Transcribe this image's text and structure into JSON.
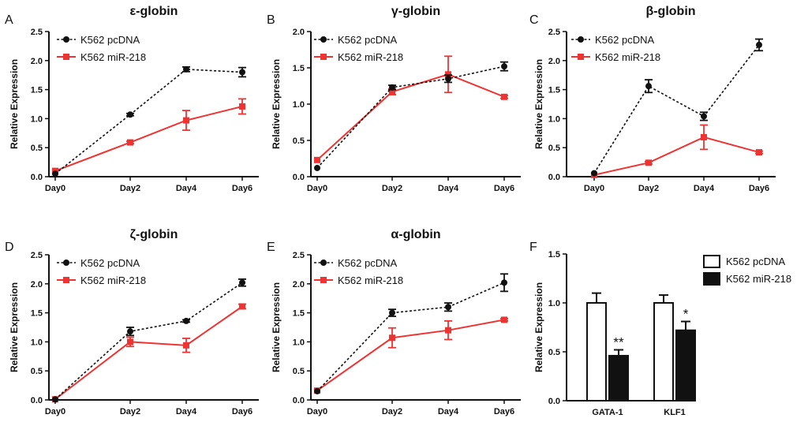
{
  "chart_data": [
    {
      "panel": "A",
      "type": "line",
      "title": "ε-globin",
      "ylabel": "Relative Expression",
      "ylim": [
        0,
        2.5
      ],
      "yticks": [
        "0.0",
        "0.5",
        "1.0",
        "1.5",
        "2.0",
        "2.5"
      ],
      "categories": [
        "Day0",
        "Day2",
        "Day4",
        "Day6"
      ],
      "series": [
        {
          "name": "K562 pcDNA",
          "color": "#111111",
          "style": "dashed",
          "marker": "circle",
          "values": [
            0.05,
            1.07,
            1.85,
            1.8
          ],
          "errors": [
            0,
            0.02,
            0.04,
            0.08
          ]
        },
        {
          "name": "K562 miR-218",
          "color": "#ee3333",
          "style": "solid",
          "marker": "square",
          "values": [
            0.1,
            0.59,
            0.97,
            1.21
          ],
          "errors": [
            0,
            0.02,
            0.17,
            0.13
          ]
        }
      ]
    },
    {
      "panel": "B",
      "type": "line",
      "title": "γ-globin",
      "ylabel": "Relative Expression",
      "ylim": [
        0,
        2.0
      ],
      "yticks": [
        "0.0",
        "0.5",
        "1.0",
        "1.5",
        "2.0"
      ],
      "categories": [
        "Day0",
        "Day2",
        "Day4",
        "Day6"
      ],
      "series": [
        {
          "name": "K562 pcDNA",
          "color": "#111111",
          "style": "dashed",
          "marker": "circle",
          "values": [
            0.12,
            1.23,
            1.35,
            1.52
          ],
          "errors": [
            0,
            0.03,
            0.05,
            0.06
          ]
        },
        {
          "name": "K562 miR-218",
          "color": "#ee3333",
          "style": "solid",
          "marker": "square",
          "values": [
            0.23,
            1.17,
            1.41,
            1.1
          ],
          "errors": [
            0,
            0.04,
            0.25,
            0.02
          ]
        }
      ]
    },
    {
      "panel": "C",
      "type": "line",
      "title": "β-globin",
      "ylabel": "Relative Expression",
      "ylim": [
        0,
        2.5
      ],
      "yticks": [
        "0.0",
        "0.5",
        "1.0",
        "1.5",
        "2.0",
        "2.5"
      ],
      "categories": [
        "Day0",
        "Day2",
        "Day4",
        "Day6"
      ],
      "series": [
        {
          "name": "K562 pcDNA",
          "color": "#111111",
          "style": "dashed",
          "marker": "circle",
          "values": [
            0.06,
            1.56,
            1.04,
            2.27
          ],
          "errors": [
            0,
            0.11,
            0.07,
            0.1
          ]
        },
        {
          "name": "K562 miR-218",
          "color": "#ee3333",
          "style": "solid",
          "marker": "square",
          "values": [
            0.03,
            0.24,
            0.68,
            0.42
          ],
          "errors": [
            0,
            0.02,
            0.21,
            0.02
          ]
        }
      ]
    },
    {
      "panel": "D",
      "type": "line",
      "title": "ζ-globin",
      "ylabel": "Relative Expression",
      "ylim": [
        0,
        2.5
      ],
      "yticks": [
        "0.0",
        "0.5",
        "1.0",
        "1.5",
        "2.0",
        "2.5"
      ],
      "categories": [
        "Day0",
        "Day2",
        "Day4",
        "Day6"
      ],
      "series": [
        {
          "name": "K562 pcDNA",
          "color": "#111111",
          "style": "dashed",
          "marker": "circle",
          "values": [
            0.01,
            1.18,
            1.36,
            2.02
          ],
          "errors": [
            0,
            0.07,
            0.02,
            0.06
          ]
        },
        {
          "name": "K562 miR-218",
          "color": "#ee3333",
          "style": "solid",
          "marker": "square",
          "values": [
            0.01,
            1.0,
            0.94,
            1.61
          ],
          "errors": [
            0,
            0.08,
            0.12,
            0.04
          ]
        }
      ]
    },
    {
      "panel": "E",
      "type": "line",
      "title": "α-globin",
      "ylabel": "Relative Expression",
      "ylim": [
        0,
        2.5
      ],
      "yticks": [
        "0.0",
        "0.5",
        "1.0",
        "1.5",
        "2.0",
        "2.5"
      ],
      "categories": [
        "Day0",
        "Day2",
        "Day4",
        "Day6"
      ],
      "series": [
        {
          "name": "K562 pcDNA",
          "color": "#111111",
          "style": "dashed",
          "marker": "circle",
          "values": [
            0.15,
            1.5,
            1.6,
            2.02
          ],
          "errors": [
            0,
            0.06,
            0.07,
            0.15
          ]
        },
        {
          "name": "K562 miR-218",
          "color": "#ee3333",
          "style": "solid",
          "marker": "square",
          "values": [
            0.16,
            1.07,
            1.2,
            1.38
          ],
          "errors": [
            0,
            0.17,
            0.16,
            0.02
          ]
        }
      ]
    },
    {
      "panel": "F",
      "type": "bar",
      "title": "",
      "ylabel": "Relative Expression",
      "ylim": [
        0,
        1.5
      ],
      "yticks": [
        "0.0",
        "0.5",
        "1.0",
        "1.5"
      ],
      "categories": [
        "GATA-1",
        "KLF1"
      ],
      "series": [
        {
          "name": "K562 pcDNA",
          "fill": "#ffffff",
          "values": [
            1.0,
            1.0
          ],
          "errors": [
            0.1,
            0.08
          ]
        },
        {
          "name": "K562 miR-218",
          "fill": "#111111",
          "values": [
            0.46,
            0.72
          ],
          "errors": [
            0.06,
            0.09
          ]
        }
      ],
      "annotations": [
        "**",
        "*"
      ]
    }
  ]
}
